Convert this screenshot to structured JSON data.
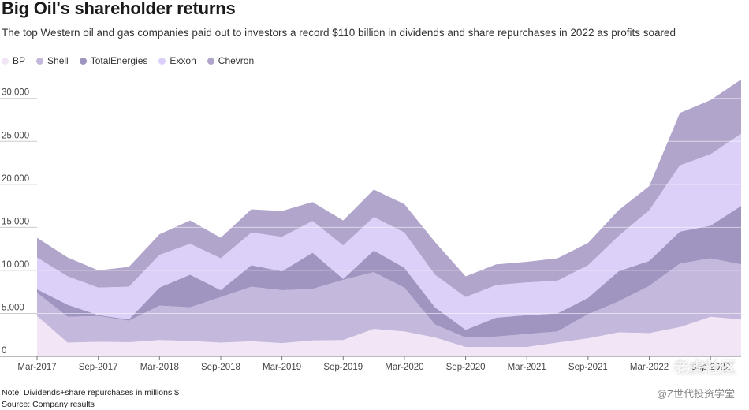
{
  "header": {
    "title": "Big Oil's shareholder returns",
    "subtitle": "The top Western oil and gas companies paid out to investors a record $110 billion in dividends and share repurchases in 2022 as profits soared"
  },
  "footer": {
    "note": "Note: Dividends+share repurchases in millions $",
    "source": "Source: Company results"
  },
  "watermark": {
    "main": "老虎社区",
    "sub": "@Z世代投资学堂"
  },
  "chart_data": {
    "type": "area",
    "stacked": true,
    "x": [
      "Mar-2017",
      "Jun-2017",
      "Sep-2017",
      "Dec-2017",
      "Mar-2018",
      "Jun-2018",
      "Sep-2018",
      "Dec-2018",
      "Mar-2019",
      "Jun-2019",
      "Sep-2019",
      "Dec-2019",
      "Mar-2020",
      "Jun-2020",
      "Sep-2020",
      "Dec-2020",
      "Mar-2021",
      "Jun-2021",
      "Sep-2021",
      "Dec-2021",
      "Mar-2022",
      "Jun-2022",
      "Sep-2022",
      "Dec-2022"
    ],
    "tick_labels": [
      "Mar-2017",
      "Sep-2017",
      "Mar-2018",
      "Sep-2018",
      "Mar-2019",
      "Sep-2019",
      "Mar-2020",
      "Sep-2020",
      "Mar-2021",
      "Sep-2021",
      "Mar-2022",
      "Sep-2022"
    ],
    "ylim": [
      0,
      33000
    ],
    "yticks": [
      0,
      5000,
      10000,
      15000,
      20000,
      25000,
      30000
    ],
    "ytick_labels": [
      "0",
      "5,000",
      "10,000",
      "15,000",
      "20,000",
      "25,000",
      "30,000"
    ],
    "grid": true,
    "legend_placement": "top-left",
    "series": [
      {
        "name": "BP",
        "color": "#f2e6f6",
        "values": [
          4700,
          1600,
          1700,
          1650,
          1900,
          1800,
          1600,
          1750,
          1550,
          1850,
          1900,
          3200,
          2900,
          2200,
          1100,
          1100,
          1100,
          1600,
          2100,
          2800,
          2700,
          3400,
          4600,
          4300
        ]
      },
      {
        "name": "Shell",
        "color": "#c4b8dc",
        "values": [
          2700,
          3000,
          3000,
          2500,
          4000,
          3900,
          5300,
          6350,
          6150,
          6000,
          7000,
          6600,
          5100,
          1500,
          1100,
          1200,
          1500,
          1300,
          2800,
          3600,
          5500,
          7400,
          6800,
          6400
        ]
      },
      {
        "name": "TotalEnergies",
        "color": "#a094c0",
        "values": [
          400,
          1400,
          100,
          150,
          2100,
          3800,
          800,
          2500,
          2200,
          4200,
          100,
          2500,
          2300,
          2000,
          900,
          2200,
          2200,
          2100,
          1900,
          3500,
          2900,
          3700,
          3800,
          6800
        ]
      },
      {
        "name": "Exxon",
        "color": "#dcd0f8",
        "values": [
          3700,
          3300,
          3200,
          3800,
          3800,
          3600,
          3700,
          3800,
          4000,
          3700,
          3900,
          3900,
          4100,
          3800,
          3800,
          3800,
          3800,
          3800,
          3800,
          4100,
          5900,
          7700,
          8300,
          8400
        ]
      },
      {
        "name": "Chevron",
        "color": "#b2a5cc",
        "values": [
          2300,
          2200,
          2000,
          2300,
          2400,
          2700,
          2400,
          2700,
          3000,
          2200,
          2900,
          3200,
          3300,
          3800,
          2400,
          2400,
          2400,
          2600,
          2600,
          3000,
          2800,
          6100,
          6300,
          6300
        ]
      }
    ]
  }
}
